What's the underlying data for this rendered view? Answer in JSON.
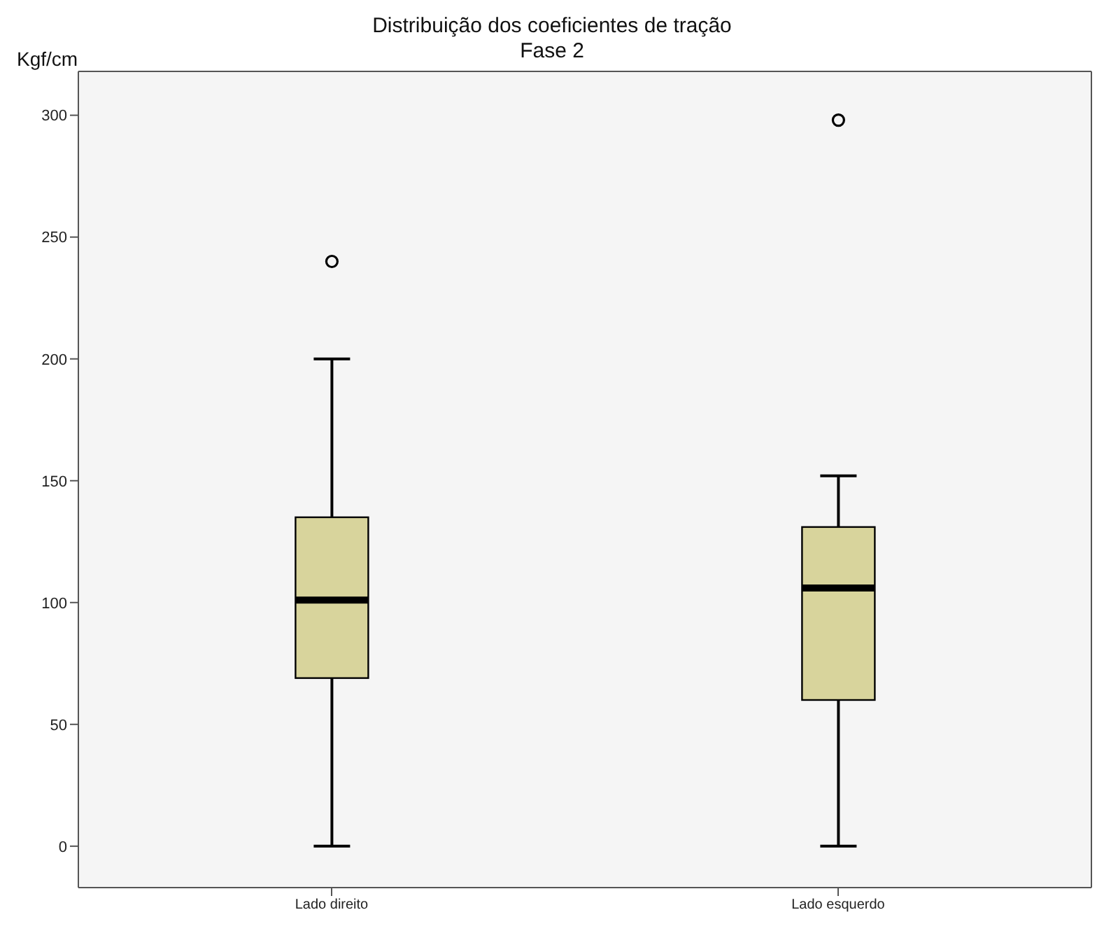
{
  "chart_data": {
    "type": "box",
    "title": "Distribuição dos coeficientes de tração",
    "subtitle": "Fase 2",
    "ylabel": "Kgf/cm",
    "categories": [
      "Lado direito",
      "Lado esquerdo"
    ],
    "series": [
      {
        "color": "#d8d49c",
        "boxes": [
          {
            "low": 0,
            "q1": 69,
            "median": 101,
            "q3": 135,
            "high": 200,
            "outliers": [
              240
            ]
          },
          {
            "low": 0,
            "q1": 60,
            "median": 106,
            "q3": 131,
            "high": 152,
            "outliers": [
              298
            ]
          }
        ]
      }
    ],
    "ylim": [
      -17,
      318
    ],
    "yticks": [
      0,
      50,
      100,
      150,
      200,
      250,
      300
    ],
    "grid": false
  }
}
